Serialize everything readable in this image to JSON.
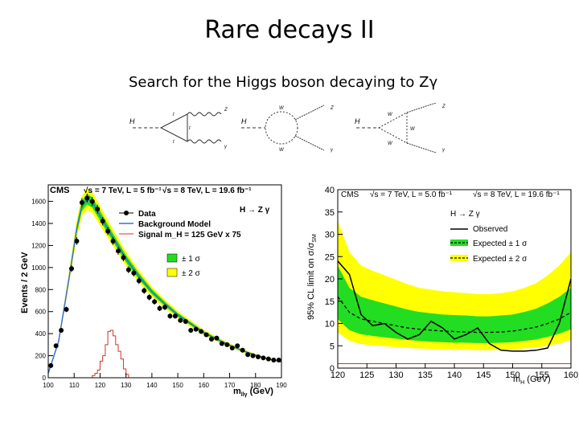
{
  "slide": {
    "title": "Rare decays II",
    "subtitle": "Search for the Higgs boson decaying to Zγ"
  },
  "feynman_labels": {
    "d1": {
      "H": "H",
      "q1": "t",
      "q2": "t",
      "q3": "t",
      "Z": "Z",
      "g": "γ"
    },
    "d2": {
      "H": "H",
      "W1": "W",
      "W2": "W",
      "Z": "Z",
      "g": "γ"
    },
    "d3": {
      "H": "H",
      "W1": "W",
      "W2": "W",
      "W3": "W",
      "Z": "Z",
      "g": "γ"
    }
  },
  "chart_data": [
    {
      "type": "scatter",
      "header_left": "CMS",
      "header_mid": "√s = 7 TeV, L = 5 fb⁻¹",
      "header_right": "√s = 8 TeV, L = 19.6 fb⁻¹",
      "channel": "H → Z γ",
      "xlabel": "m_llγ (GeV)",
      "ylabel": "Events / 2 GeV",
      "xlim": [
        100,
        190
      ],
      "ylim": [
        0,
        1750
      ],
      "xticks": [
        100,
        110,
        120,
        130,
        140,
        150,
        160,
        170,
        180,
        190
      ],
      "yticks": [
        0,
        200,
        400,
        600,
        800,
        1000,
        1200,
        1400,
        1600
      ],
      "legend": {
        "data": "Data",
        "bkg": "Background Model",
        "signal": "Signal m_H = 125 GeV x 75",
        "band1": "± 1 σ",
        "band2": "± 2 σ"
      },
      "colors": {
        "bkg": "#3a6fd8",
        "signal": "#d0342c",
        "band1": "#22dd22",
        "band2": "#ffff00"
      },
      "data_points": {
        "x": [
          101,
          103,
          105,
          107,
          109,
          111,
          113,
          115,
          117,
          119,
          121,
          123,
          125,
          127,
          129,
          131,
          133,
          135,
          137,
          139,
          141,
          143,
          145,
          147,
          149,
          151,
          153,
          155,
          157,
          159,
          161,
          163,
          165,
          167,
          169,
          171,
          173,
          175,
          177,
          179,
          181,
          183,
          185,
          187,
          189
        ],
        "y": [
          110,
          290,
          430,
          620,
          990,
          1240,
          1590,
          1630,
          1600,
          1530,
          1420,
          1330,
          1240,
          1150,
          1090,
          980,
          950,
          880,
          790,
          730,
          690,
          630,
          640,
          560,
          560,
          520,
          510,
          430,
          440,
          420,
          390,
          350,
          360,
          310,
          300,
          270,
          290,
          250,
          210,
          200,
          190,
          180,
          170,
          160,
          160
        ]
      },
      "background_model": {
        "x": [
          100,
          104,
          108,
          111,
          113,
          115,
          117,
          120,
          125,
          130,
          135,
          140,
          145,
          150,
          155,
          160,
          165,
          170,
          175,
          180,
          185,
          190
        ],
        "y": [
          40,
          330,
          900,
          1350,
          1560,
          1620,
          1590,
          1470,
          1270,
          1080,
          920,
          780,
          670,
          570,
          490,
          410,
          350,
          295,
          245,
          205,
          170,
          145
        ]
      },
      "signal": {
        "x": [
          100,
          115,
          117,
          118,
          119,
          120,
          121,
          122,
          123,
          124,
          125,
          126,
          127,
          128,
          129,
          130,
          131,
          135,
          190
        ],
        "y": [
          0,
          0,
          20,
          40,
          70,
          150,
          200,
          300,
          420,
          430,
          380,
          300,
          240,
          170,
          80,
          30,
          0,
          0,
          0
        ]
      }
    },
    {
      "type": "line",
      "header_left": "CMS",
      "header_mid": "√s = 7 TeV, L = 5.0 fb⁻¹",
      "header_right": "√s = 8 TeV, L = 19.6 fb⁻¹",
      "channel": "H → Z γ",
      "xlabel": "m_H (GeV)",
      "ylabel": "95% CL limit on σ/σ_SM",
      "xlim": [
        120,
        160
      ],
      "ylim": [
        0,
        40
      ],
      "xticks": [
        120,
        125,
        130,
        135,
        140,
        145,
        150,
        155,
        160
      ],
      "yticks": [
        0,
        5,
        10,
        15,
        20,
        25,
        30,
        35,
        40
      ],
      "legend": {
        "observed": "Observed",
        "exp1": "Expected ± 1 σ",
        "exp2": "Expected ± 2 σ"
      },
      "colors": {
        "band1": "#22dd22",
        "band2": "#ffff00",
        "line": "#000000"
      },
      "mass": [
        120,
        122,
        124,
        126,
        128,
        130,
        132,
        134,
        136,
        138,
        140,
        142,
        144,
        146,
        148,
        150,
        152,
        154,
        156,
        158,
        160
      ],
      "observed": [
        24,
        21,
        12,
        9.5,
        10,
        8,
        6.5,
        7.5,
        10.5,
        9,
        6.5,
        7.5,
        9,
        5.5,
        4,
        3.8,
        3.8,
        4,
        4.5,
        10,
        20
      ],
      "expected": [
        16,
        12.5,
        11,
        10.5,
        10,
        9.5,
        9,
        8.7,
        8.5,
        8.3,
        8.2,
        8.1,
        8,
        8,
        8.1,
        8.3,
        8.7,
        9.2,
        10,
        11,
        12.5
      ],
      "one_sigma": {
        "lo": [
          11,
          8.5,
          7.6,
          7.2,
          6.9,
          6.6,
          6.3,
          6.1,
          5.9,
          5.8,
          5.7,
          5.7,
          5.6,
          5.6,
          5.7,
          5.8,
          6.1,
          6.4,
          7,
          7.7,
          8.7
        ],
        "hi": [
          23,
          18,
          16,
          15.2,
          14.5,
          13.8,
          13.1,
          12.6,
          12.3,
          12,
          11.9,
          11.8,
          11.6,
          11.6,
          11.8,
          12,
          12.6,
          13.3,
          14.5,
          16,
          18
        ]
      },
      "two_sigma": {
        "lo": [
          8,
          6.1,
          5.4,
          5.1,
          4.9,
          4.7,
          4.5,
          4.4,
          4.3,
          4.2,
          4.1,
          4.1,
          4,
          4,
          4.1,
          4.2,
          4.4,
          4.6,
          5,
          5.5,
          6.3
        ],
        "hi": [
          33,
          26,
          23,
          21.8,
          20.8,
          19.8,
          18.8,
          18,
          17.6,
          17.2,
          17,
          16.8,
          16.6,
          16.6,
          16.8,
          17.2,
          18,
          19,
          20.8,
          23,
          26
        ]
      }
    }
  ]
}
